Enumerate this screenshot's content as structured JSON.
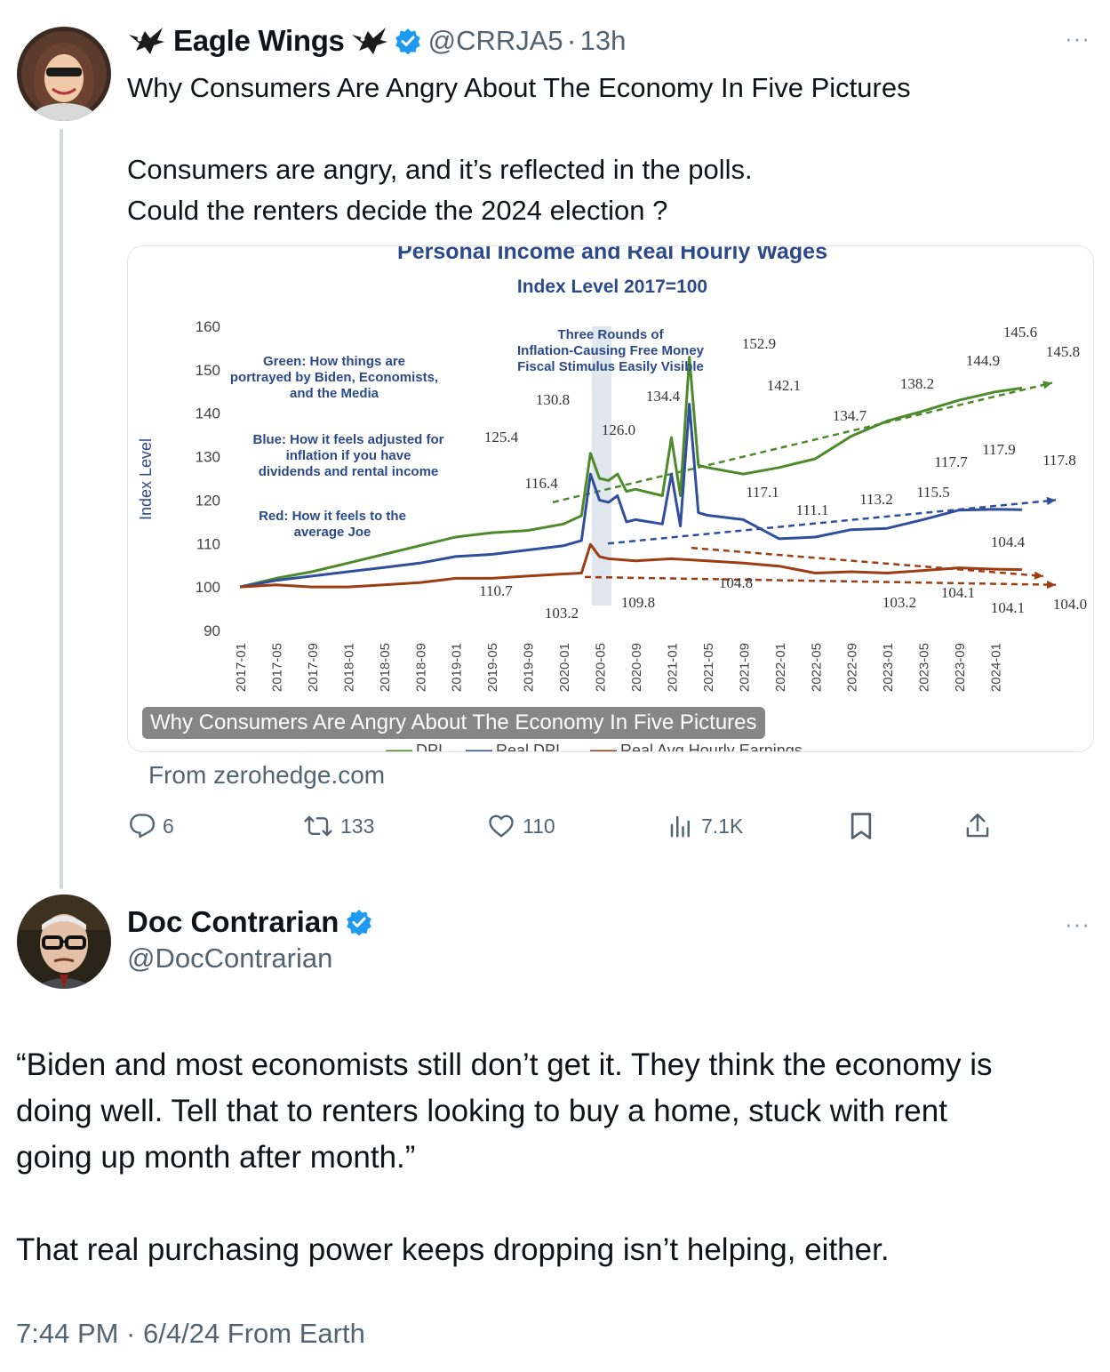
{
  "tweet1": {
    "display_name": "Eagle Wings",
    "handle": "@CRRJA5",
    "separator": "·",
    "time": "13h",
    "text_lines": [
      "Why Consumers Are Angry About The Economy In Five Pictures",
      "",
      "Consumers are angry, and it’s reflected in the polls.",
      "Could the renters decide the 2024 election ?"
    ],
    "card": {
      "caption": "Why Consumers Are Angry About The Economy In Five Pictures",
      "source": "From zerohedge.com"
    },
    "actions": {
      "replies": "6",
      "reposts": "133",
      "likes": "110",
      "views": "7.1K"
    }
  },
  "tweet2": {
    "display_name": "Doc Contrarian",
    "handle": "@DocContrarian",
    "paragraph1": [
      "“Biden and most economists still don’t get it. They think the economy is",
      "doing well. Tell that to renters looking to buy a home, stuck with rent",
      "going up month after month.”"
    ],
    "paragraph2": "That real purchasing power keeps dropping isn’t helping, either.",
    "meta": "7:44 PM · 6/4/24 From Earth"
  },
  "colors": {
    "text": "#0f1419",
    "muted": "#536471",
    "verified": "#1d9bf0",
    "green_series": "#4e8a2c",
    "blue_series": "#2f4f9c",
    "red_series": "#9c3d14",
    "chart_title": "#2c4a8a"
  },
  "chart_data": {
    "type": "line",
    "title": "Personal Income and Real Hourly Wages",
    "subtitle": "Index Level 2017=100",
    "ylabel": "Index Level",
    "ylim": [
      90,
      160
    ],
    "yticks": [
      90,
      100,
      110,
      120,
      130,
      140,
      150,
      160
    ],
    "x_ticks": [
      "2017-01",
      "2017-05",
      "2017-09",
      "2018-01",
      "2018-05",
      "2018-09",
      "2019-01",
      "2019-05",
      "2019-09",
      "2020-01",
      "2020-05",
      "2020-09",
      "2021-01",
      "2021-05",
      "2021-09",
      "2022-01",
      "2022-05",
      "2022-09",
      "2023-01",
      "2023-05",
      "2023-09",
      "2024-01"
    ],
    "legend": [
      "DPI",
      "Real DPI",
      "Real Avg Hourly Earnings"
    ],
    "legend_placement": "bottom",
    "series": [
      {
        "name": "DPI",
        "color": "#4e8a2c",
        "x": [
          "2017-01",
          "2017-05",
          "2017-09",
          "2018-01",
          "2018-05",
          "2018-09",
          "2019-01",
          "2019-05",
          "2019-09",
          "2020-01",
          "2020-03",
          "2020-04",
          "2020-05",
          "2020-06",
          "2020-07",
          "2020-08",
          "2020-09",
          "2020-12",
          "2021-01",
          "2021-02",
          "2021-03",
          "2021-04",
          "2021-05",
          "2021-09",
          "2022-01",
          "2022-05",
          "2022-09",
          "2023-01",
          "2023-05",
          "2023-09",
          "2024-01",
          "2024-04"
        ],
        "values": [
          100,
          102,
          103.5,
          105.5,
          107.5,
          109.5,
          111.5,
          112.5,
          113,
          114.5,
          116.4,
          130.8,
          125,
          124.5,
          126,
          122,
          122.5,
          121,
          134.4,
          121,
          152.9,
          128,
          127.5,
          126,
          127.5,
          129.5,
          134.7,
          138.2,
          140.5,
          143,
          144.9,
          145.8
        ]
      },
      {
        "name": "Real DPI",
        "color": "#2f4f9c",
        "x": [
          "2017-01",
          "2017-05",
          "2017-09",
          "2018-01",
          "2018-05",
          "2018-09",
          "2019-01",
          "2019-05",
          "2019-09",
          "2020-01",
          "2020-03",
          "2020-04",
          "2020-05",
          "2020-06",
          "2020-07",
          "2020-08",
          "2020-09",
          "2020-12",
          "2021-01",
          "2021-02",
          "2021-03",
          "2021-04",
          "2021-05",
          "2021-09",
          "2022-01",
          "2022-05",
          "2022-09",
          "2023-01",
          "2023-05",
          "2023-09",
          "2024-01",
          "2024-04"
        ],
        "values": [
          100,
          101.5,
          102.5,
          103.5,
          104.5,
          105.5,
          107,
          107.5,
          108.5,
          109.5,
          110.7,
          126.0,
          120,
          119.5,
          121,
          115,
          115.5,
          114.5,
          126,
          114,
          142.1,
          117.1,
          116.5,
          115.5,
          111.1,
          111.5,
          113.2,
          113.5,
          115.5,
          117.7,
          117.9,
          117.8
        ]
      },
      {
        "name": "Real Avg Hourly Earnings",
        "color": "#9c3d14",
        "x": [
          "2017-01",
          "2017-05",
          "2017-09",
          "2018-01",
          "2018-05",
          "2018-09",
          "2019-01",
          "2019-05",
          "2019-09",
          "2020-01",
          "2020-03",
          "2020-04",
          "2020-05",
          "2020-06",
          "2020-09",
          "2021-01",
          "2021-05",
          "2021-09",
          "2022-01",
          "2022-05",
          "2022-09",
          "2023-01",
          "2023-05",
          "2023-09",
          "2024-01",
          "2024-04"
        ],
        "values": [
          100,
          100.5,
          100,
          100,
          100.5,
          101,
          102,
          102,
          102.5,
          103,
          103.2,
          109.8,
          107,
          106.5,
          106,
          106.5,
          106,
          105.5,
          104.8,
          103.2,
          103.5,
          103.2,
          103.8,
          104.4,
          104.1,
          104.0
        ]
      }
    ],
    "annotations": [
      "Green: How things are portrayed by Biden, Economists, and the Media",
      "Blue: How it feels adjusted for inflation if you have dividends and rental income",
      "Red: How it feels to the average Joe",
      "Three Rounds of Inflation-Causing Free Money Fiscal Stimulus Easily Visible"
    ],
    "data_labels": [
      "152.9",
      "130.8",
      "134.4",
      "125.4",
      "126.0",
      "116.4",
      "142.1",
      "138.2",
      "134.7",
      "145.6",
      "144.9",
      "145.8",
      "117.1",
      "111.1",
      "113.2",
      "115.5",
      "117.7",
      "117.9",
      "117.8",
      "110.7",
      "103.2",
      "109.8",
      "104.8",
      "104.4",
      "103.2",
      "104.1",
      "104.1",
      "104.0"
    ]
  }
}
